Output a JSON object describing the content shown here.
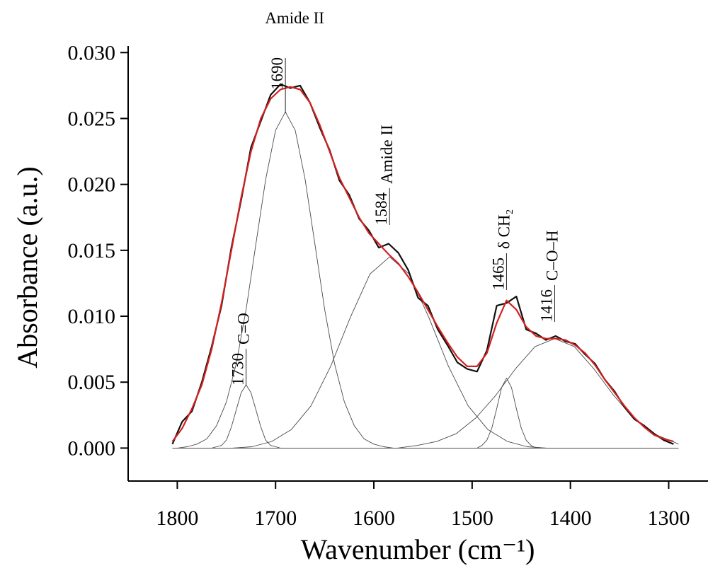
{
  "chart_data": {
    "type": "line",
    "x_label": "Wavenumber (cm⁻¹)",
    "y_label": "Absorbance (a.u.)",
    "xlim": [
      1850,
      1260
    ],
    "ylim": [
      -0.0025,
      0.0305
    ],
    "xticks": [
      1800,
      1700,
      1600,
      1500,
      1400,
      1300
    ],
    "yticks": [
      {
        "value": 0,
        "label": "0.000"
      },
      {
        "value": 0.005,
        "label": "0.005"
      },
      {
        "value": 0.01,
        "label": "0.010"
      },
      {
        "value": 0.015,
        "label": "0.015"
      },
      {
        "value": 0.02,
        "label": "0.020"
      },
      {
        "value": 0.025,
        "label": "0.025"
      },
      {
        "value": 0.03,
        "label": "0.030"
      }
    ],
    "x": [
      1805,
      1795,
      1785,
      1775,
      1765,
      1755,
      1745,
      1735,
      1725,
      1715,
      1705,
      1695,
      1685,
      1675,
      1665,
      1655,
      1645,
      1635,
      1625,
      1615,
      1605,
      1595,
      1585,
      1575,
      1565,
      1555,
      1545,
      1535,
      1525,
      1515,
      1505,
      1495,
      1485,
      1475,
      1465,
      1455,
      1445,
      1435,
      1425,
      1415,
      1405,
      1395,
      1385,
      1375,
      1365,
      1355,
      1345,
      1335,
      1325,
      1315,
      1305,
      1295
    ],
    "series": [
      {
        "color": "#4a4a4a",
        "width": 0.9,
        "x": [
          1805,
          1765,
          1760,
          1755,
          1750,
          1745,
          1740,
          1735,
          1730,
          1725,
          1720,
          1715,
          1710,
          1705,
          1700,
          1695,
          1290
        ],
        "values": [
          0,
          0,
          0.0001,
          0.0002,
          0.0006,
          0.0016,
          0.0029,
          0.0042,
          0.0048,
          0.0042,
          0.0029,
          0.0016,
          0.0006,
          0.0002,
          0.0001,
          0,
          0
        ]
      },
      {
        "color": "#4a4a4a",
        "width": 0.9,
        "x": [
          1805,
          1800,
          1790,
          1780,
          1770,
          1760,
          1750,
          1740,
          1730,
          1720,
          1710,
          1700,
          1690,
          1680,
          1670,
          1660,
          1650,
          1640,
          1630,
          1620,
          1610,
          1600,
          1590,
          1580,
          1290
        ],
        "values": [
          0,
          0,
          0.0001,
          0.0003,
          0.0007,
          0.0017,
          0.0035,
          0.0064,
          0.0105,
          0.0155,
          0.0204,
          0.0241,
          0.0255,
          0.0241,
          0.0204,
          0.0155,
          0.0105,
          0.0064,
          0.0035,
          0.0017,
          0.0007,
          0.0003,
          0.0001,
          0,
          0
        ]
      },
      {
        "color": "#4a4a4a",
        "width": 0.9,
        "x": [
          1805,
          1764,
          1744,
          1724,
          1704,
          1684,
          1664,
          1644,
          1624,
          1604,
          1584,
          1564,
          1544,
          1524,
          1504,
          1484,
          1464,
          1444,
          1424,
          1404,
          1290
        ],
        "values": [
          0,
          0,
          0,
          0.0001,
          0.0005,
          0.0014,
          0.0032,
          0.0062,
          0.0099,
          0.0132,
          0.0145,
          0.0132,
          0.0099,
          0.0062,
          0.0032,
          0.0014,
          0.0005,
          0.0001,
          0,
          0,
          0
        ]
      },
      {
        "color": "#4a4a4a",
        "width": 0.9,
        "x": [
          1805,
          1495,
          1490,
          1485,
          1480,
          1475,
          1470,
          1465,
          1460,
          1455,
          1450,
          1445,
          1440,
          1435,
          1290
        ],
        "values": [
          0,
          0,
          0.0002,
          0.0006,
          0.0015,
          0.003,
          0.0046,
          0.0053,
          0.0046,
          0.003,
          0.0015,
          0.0006,
          0.0002,
          0,
          0
        ]
      },
      {
        "color": "#4a4a4a",
        "width": 0.9,
        "x": [
          1805,
          1576,
          1556,
          1536,
          1516,
          1496,
          1476,
          1456,
          1436,
          1416,
          1396,
          1376,
          1356,
          1336,
          1316,
          1296,
          1290
        ],
        "values": [
          0,
          0,
          0.0002,
          0.0005,
          0.0011,
          0.0023,
          0.004,
          0.006,
          0.0077,
          0.0083,
          0.0077,
          0.006,
          0.004,
          0.0023,
          0.0011,
          0.0005,
          0.0003
        ]
      },
      {
        "color": "#111111",
        "width": 2.2,
        "values": [
          0.0003,
          0.002,
          0.0028,
          0.005,
          0.0077,
          0.0108,
          0.0152,
          0.0188,
          0.0228,
          0.0248,
          0.0268,
          0.0276,
          0.0273,
          0.0275,
          0.0262,
          0.0243,
          0.0226,
          0.0203,
          0.0192,
          0.0174,
          0.0165,
          0.0152,
          0.0155,
          0.0148,
          0.0135,
          0.0114,
          0.0108,
          0.009,
          0.0078,
          0.0065,
          0.006,
          0.0058,
          0.0074,
          0.0108,
          0.011,
          0.0115,
          0.009,
          0.0087,
          0.0082,
          0.0085,
          0.0081,
          0.0079,
          0.0071,
          0.0064,
          0.0052,
          0.0043,
          0.0031,
          0.0022,
          0.0017,
          0.0011,
          0.0006,
          0.0003
        ]
      },
      {
        "color": "#d42020",
        "width": 2.2,
        "values": [
          0.0005,
          0.0015,
          0.003,
          0.0048,
          0.0075,
          0.011,
          0.015,
          0.019,
          0.0225,
          0.025,
          0.0265,
          0.0272,
          0.0274,
          0.0272,
          0.0262,
          0.0245,
          0.0225,
          0.0205,
          0.019,
          0.0175,
          0.0163,
          0.0155,
          0.0147,
          0.014,
          0.013,
          0.0118,
          0.0105,
          0.0092,
          0.008,
          0.0069,
          0.0062,
          0.0062,
          0.0072,
          0.0095,
          0.0112,
          0.0105,
          0.0092,
          0.0085,
          0.0083,
          0.0083,
          0.0082,
          0.0078,
          0.0072,
          0.0063,
          0.0052,
          0.0042,
          0.0032,
          0.0023,
          0.0016,
          0.001,
          0.0007,
          0.0005
        ]
      }
    ],
    "annotations": [
      {
        "position": 1730,
        "label": "C=O"
      },
      {
        "position": 1690,
        "label": "Amide II"
      },
      {
        "position": 1584,
        "label": "Amide II"
      },
      {
        "position": 1465,
        "label": "δ CH₂"
      },
      {
        "position": 1416,
        "label": "C–O–H"
      }
    ]
  }
}
